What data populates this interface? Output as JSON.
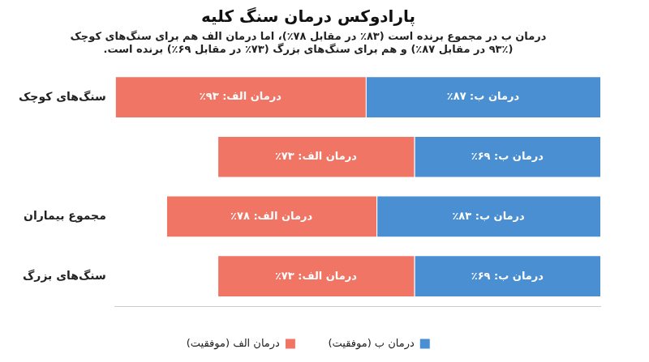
{
  "chart_data": {
    "type": "bar",
    "orientation": "horizontal",
    "stacked": true,
    "title": "پارادوکس درمان سنگ کلیه",
    "subtitle": [
      "درمان ب در مجموع برنده است (۸۳٪ در مقابل ۷۸٪)، اما درمان الف هم برای سنگ‌های کوچک",
      "(۹۳٪ در مقابل ۸۷٪) و هم برای سنگ‌های بزرگ (۷۳٪ در مقابل ۶۹٪) برنده است."
    ],
    "categories": [
      "سنگ‌های کوچک",
      null,
      "مجموع بیماران",
      "سنگ‌های بزرگ"
    ],
    "series": [
      {
        "name": "درمان ب (موفقیت)",
        "color": "#4a8fd2",
        "values": [
          87,
          69,
          83,
          69
        ],
        "value_labels": [
          "درمان ب: ۸۷٪",
          "درمان ب: ۶۹٪",
          "درمان ب: ۸۳٪",
          "درمان ب: ۶۹٪"
        ]
      },
      {
        "name": "درمان الف (موفقیت)",
        "color": "#f07565",
        "values": [
          93,
          73,
          78,
          73
        ],
        "value_labels": [
          "درمان الف: ۹۳٪",
          "درمان الف: ۷۳٪",
          "درمان الف: ۷۸٪",
          "درمان الف: ۷۳٪"
        ]
      }
    ],
    "xlim": [
      0,
      180
    ],
    "tick_labels": "y",
    "grid": false,
    "legend": "bottom",
    "data_labels": true
  }
}
